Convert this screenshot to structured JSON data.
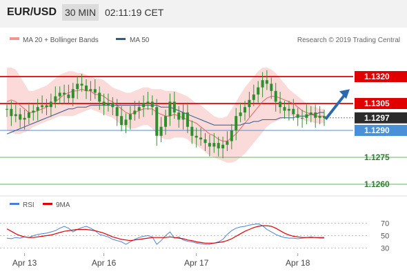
{
  "header": {
    "symbol": "EUR/USD",
    "timeframe": "30 MIN",
    "clock": "02:11:19 CET"
  },
  "legend": {
    "ma20_label": "MA 20 + Bollinger Bands",
    "ma50_label": "MA 50",
    "credit": "Research © 2019 Trading Central"
  },
  "colors": {
    "bollinger": "#f49595",
    "ma20": "#e05a5a",
    "ma50": "#2d5a8c",
    "candle": "#2f8f2f",
    "resistance": "#e00000",
    "support": "#4a90d9",
    "target": "#64b464",
    "last": "#2b2b2b",
    "arrow": "#2a6aad",
    "rsi": "#4a7ed9",
    "rsi_ma": "#e00000"
  },
  "chart_data": [
    {
      "type": "line",
      "ylim": [
        1.1255,
        1.1335
      ],
      "levels": [
        {
          "label": "1.1320",
          "value": 1.132,
          "role": "resistance"
        },
        {
          "label": "1.1305",
          "value": 1.1305,
          "role": "resistance"
        },
        {
          "label": "1.1297",
          "value": 1.1297,
          "role": "last"
        },
        {
          "label": "1.1290",
          "value": 1.129,
          "role": "support"
        },
        {
          "label": "1.1275",
          "value": 1.1275,
          "role": "target"
        },
        {
          "label": "1.1260",
          "value": 1.126,
          "role": "target"
        }
      ],
      "price": [
        1.1302,
        1.1298,
        1.1299,
        1.1296,
        1.1297,
        1.13,
        1.1301,
        1.1303,
        1.1304,
        1.1303,
        1.1306,
        1.1309,
        1.1311,
        1.131,
        1.1308,
        1.1313,
        1.1316,
        1.1315,
        1.1312,
        1.1313,
        1.1311,
        1.1306,
        1.1304,
        1.1305,
        1.1303,
        1.1298,
        1.1293,
        1.1296,
        1.1299,
        1.1301,
        1.1303,
        1.1305,
        1.1306,
        1.1303,
        1.1287,
        1.1292,
        1.1298,
        1.1306,
        1.13,
        1.1296,
        1.13,
        1.1292,
        1.1287,
        1.1286,
        1.1285,
        1.1283,
        1.1281,
        1.1283,
        1.128,
        1.1282,
        1.1284,
        1.129,
        1.1298,
        1.13,
        1.1303,
        1.1307,
        1.131,
        1.1314,
        1.1318,
        1.1316,
        1.1312,
        1.1306,
        1.1303,
        1.1301,
        1.1302,
        1.1299,
        1.1297,
        1.1297,
        1.1299,
        1.13,
        1.1297,
        1.1298,
        1.1297
      ],
      "ma20": [
        1.1306,
        1.1307,
        1.1306,
        1.1304,
        1.1302,
        1.13,
        1.13,
        1.1301,
        1.1302,
        1.1303,
        1.1304,
        1.1306,
        1.1308,
        1.131,
        1.1311,
        1.1312,
        1.1312,
        1.1313,
        1.1312,
        1.1312,
        1.131,
        1.131,
        1.1309,
        1.1307,
        1.1306,
        1.1304,
        1.1302,
        1.13,
        1.1299,
        1.13,
        1.1301,
        1.1302,
        1.1302,
        1.1302,
        1.13,
        1.1299,
        1.1298,
        1.1298,
        1.1299,
        1.1298,
        1.1297,
        1.1296,
        1.1295,
        1.1294,
        1.1292,
        1.129,
        1.1288,
        1.1287,
        1.1285,
        1.1284,
        1.1284,
        1.1286,
        1.1288,
        1.1291,
        1.1294,
        1.1297,
        1.13,
        1.1303,
        1.1306,
        1.1308,
        1.1309,
        1.1309,
        1.1308,
        1.1307,
        1.1306,
        1.1305,
        1.1303,
        1.1301,
        1.13,
        1.1299,
        1.1298,
        1.1298,
        1.1298
      ],
      "bb_upper": [
        1.1325,
        1.1325,
        1.1324,
        1.132,
        1.1316,
        1.1312,
        1.1312,
        1.1313,
        1.1314,
        1.1315,
        1.1317,
        1.1319,
        1.1321,
        1.1322,
        1.1323,
        1.1323,
        1.1322,
        1.1322,
        1.1321,
        1.132,
        1.1319,
        1.1319,
        1.1318,
        1.1316,
        1.1314,
        1.1313,
        1.1312,
        1.1311,
        1.1311,
        1.1312,
        1.1313,
        1.1314,
        1.1314,
        1.1313,
        1.1313,
        1.1313,
        1.1312,
        1.1312,
        1.1312,
        1.1311,
        1.131,
        1.1309,
        1.1307,
        1.1305,
        1.1304,
        1.1302,
        1.13,
        1.1298,
        1.1297,
        1.1297,
        1.1298,
        1.1302,
        1.1306,
        1.131,
        1.1314,
        1.1317,
        1.132,
        1.1323,
        1.1325,
        1.1325,
        1.1324,
        1.1322,
        1.1319,
        1.1316,
        1.1313,
        1.1311,
        1.1309,
        1.1307,
        1.1305,
        1.1304,
        1.1303,
        1.1302,
        1.1302
      ],
      "bb_lower": [
        1.129,
        1.1289,
        1.1288,
        1.1288,
        1.1289,
        1.129,
        1.1292,
        1.1293,
        1.1294,
        1.1295,
        1.1296,
        1.1297,
        1.1298,
        1.1298,
        1.1298,
        1.1298,
        1.1299,
        1.13,
        1.1301,
        1.1302,
        1.1301,
        1.13,
        1.1299,
        1.1298,
        1.1297,
        1.1295,
        1.1293,
        1.1292,
        1.1291,
        1.1291,
        1.1292,
        1.1293,
        1.1293,
        1.1291,
        1.1288,
        1.1286,
        1.1285,
        1.1285,
        1.1286,
        1.1286,
        1.1286,
        1.1285,
        1.1283,
        1.1282,
        1.128,
        1.1278,
        1.1276,
        1.1275,
        1.1274,
        1.1273,
        1.1272,
        1.1272,
        1.1273,
        1.1275,
        1.1277,
        1.128,
        1.1283,
        1.1286,
        1.1289,
        1.1292,
        1.1294,
        1.1295,
        1.1296,
        1.1297,
        1.1298,
        1.1298,
        1.1297,
        1.1296,
        1.1295,
        1.1295,
        1.1294,
        1.1294,
        1.1294
      ],
      "ma50": [
        1.1288,
        1.1289,
        1.129,
        1.1291,
        1.1292,
        1.1293,
        1.1294,
        1.1295,
        1.1296,
        1.1297,
        1.1298,
        1.1299,
        1.13,
        1.1301,
        1.1302,
        1.1302,
        1.1303,
        1.1303,
        1.1303,
        1.1304,
        1.1304,
        1.1304,
        1.1304,
        1.1304,
        1.1304,
        1.1304,
        1.1304,
        1.1304,
        1.1304,
        1.1304,
        1.1304,
        1.1304,
        1.1304,
        1.1304,
        1.1304,
        1.1303,
        1.1303,
        1.1303,
        1.1302,
        1.1301,
        1.13,
        1.1299,
        1.1298,
        1.1297,
        1.1296,
        1.1295,
        1.1294,
        1.1293,
        1.1293,
        1.1293,
        1.1293,
        1.1293,
        1.1293,
        1.1293,
        1.1294,
        1.1294,
        1.1295,
        1.1295,
        1.1296,
        1.1296,
        1.1296,
        1.1296,
        1.1297,
        1.1297,
        1.1297,
        1.1297,
        1.1298,
        1.1298,
        1.1298,
        1.1299,
        1.1299,
        1.13,
        1.13
      ],
      "projection": {
        "from": 1.1297,
        "to": 1.1313
      }
    },
    {
      "type": "line",
      "ylim": [
        25,
        85
      ],
      "yticks": [
        30,
        50,
        70
      ],
      "legend": [
        {
          "name": "RSI"
        },
        {
          "name": "9MA"
        }
      ],
      "x_labels": [
        {
          "label": "Apr 13",
          "index": 4
        },
        {
          "label": "Apr 16",
          "index": 22
        },
        {
          "label": "Apr 17",
          "index": 43
        },
        {
          "label": "Apr 18",
          "index": 66
        }
      ],
      "rsi": [
        46,
        45,
        47,
        46,
        48,
        47,
        50,
        52,
        53,
        54,
        56,
        58,
        62,
        65,
        62,
        56,
        60,
        63,
        65,
        62,
        58,
        52,
        50,
        48,
        44,
        42,
        40,
        36,
        40,
        44,
        47,
        49,
        50,
        48,
        36,
        42,
        50,
        56,
        46,
        48,
        43,
        41,
        40,
        38,
        37,
        36,
        36,
        38,
        40,
        44,
        52,
        58,
        62,
        64,
        65,
        67,
        68,
        69,
        66,
        60,
        56,
        52,
        49,
        47,
        46,
        46,
        45,
        46,
        47,
        48,
        47,
        46,
        46
      ],
      "rsi_ma": [
        61,
        57,
        53,
        50,
        48,
        47,
        47,
        48,
        49,
        50,
        51,
        53,
        55,
        57,
        58,
        59,
        60,
        60,
        60,
        59,
        58,
        56,
        54,
        51,
        48,
        46,
        44,
        43,
        42,
        43,
        44,
        45,
        46,
        47,
        47,
        47,
        47,
        48,
        47,
        46,
        45,
        43,
        42,
        40,
        39,
        38,
        38,
        38,
        39,
        40,
        42,
        45,
        49,
        53,
        57,
        60,
        63,
        65,
        66,
        66,
        65,
        62,
        58,
        54,
        51,
        49,
        48,
        47,
        47,
        47,
        47,
        47,
        47
      ]
    }
  ]
}
